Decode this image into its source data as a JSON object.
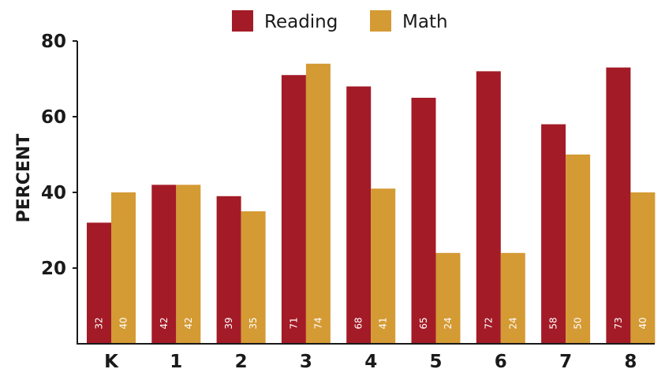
{
  "chart_data": {
    "type": "bar",
    "title": "",
    "xlabel": "",
    "ylabel": "PERCENT",
    "categories": [
      "K",
      "1",
      "2",
      "3",
      "4",
      "5",
      "6",
      "7",
      "8"
    ],
    "yticks": [
      "20",
      "40",
      "60",
      "80"
    ],
    "ylim": [
      0,
      80
    ],
    "grid": false,
    "legend_position": "top-center",
    "series": [
      {
        "name": "Reading",
        "color": "#a31b27",
        "values": [
          32,
          42,
          39,
          71,
          68,
          65,
          72,
          58,
          73
        ]
      },
      {
        "name": "Math",
        "color": "#d49a34",
        "values": [
          40,
          42,
          35,
          74,
          41,
          24,
          24,
          50,
          40
        ]
      }
    ]
  }
}
